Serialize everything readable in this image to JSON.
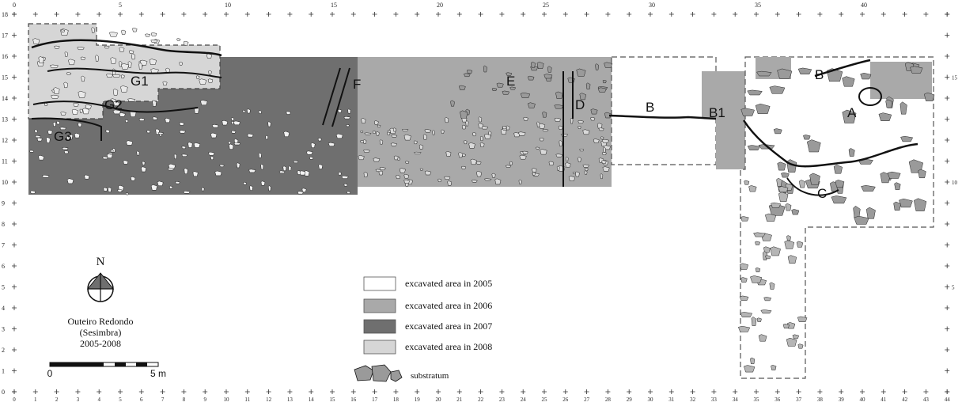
{
  "grid": {
    "x_ticks_top": [
      "0",
      "5",
      "10",
      "15",
      "20",
      "25",
      "30",
      "35",
      "40"
    ],
    "x_ticks_bottom": [
      "0",
      "1",
      "2",
      "3",
      "4",
      "5",
      "6",
      "7",
      "8",
      "9",
      "10",
      "11",
      "12",
      "13",
      "14",
      "15",
      "16",
      "17",
      "18",
      "19",
      "20",
      "21",
      "22",
      "23",
      "24",
      "25",
      "26",
      "27",
      "28",
      "29",
      "30",
      "31",
      "32",
      "33",
      "34",
      "35",
      "36",
      "37",
      "38",
      "39",
      "40",
      "41",
      "42",
      "43",
      "44"
    ],
    "y_ticks": [
      "18",
      "17",
      "16",
      "15",
      "14",
      "13",
      "12",
      "11",
      "10",
      "9",
      "8",
      "7",
      "6",
      "5",
      "4",
      "3",
      "2",
      "1",
      "0"
    ],
    "y_ticks_right": [
      "15",
      "10",
      "5"
    ]
  },
  "area_labels": [
    "G1",
    "G2",
    "G3",
    "F",
    "E",
    "D",
    "B",
    "B1",
    "B",
    "A",
    "C"
  ],
  "north_arrow": {
    "label": "N"
  },
  "site": {
    "name": "Outeiro Redondo",
    "region": "(Sesimbra)",
    "years": "2005-2008"
  },
  "scale_bar": {
    "start_label": "0",
    "end_label": "5 m"
  },
  "legend": {
    "items": [
      {
        "label": "excavated area in 2005",
        "color": "#ffffff"
      },
      {
        "label": "excavated area in 2006",
        "color": "#a9a9a9"
      },
      {
        "label": "excavated area in 2007",
        "color": "#6f6f6f"
      },
      {
        "label": "excavated area in 2008",
        "color": "#d6d6d6"
      }
    ],
    "substratum_label": "substratum"
  },
  "colors": {
    "area_2005": "#ffffff",
    "area_2006": "#a9a9a9",
    "area_2007": "#6f6f6f",
    "area_2008": "#d6d6d6",
    "stone_light": "#f2f2f2",
    "stone_dark": "#9a9a9a",
    "line": "#111111"
  }
}
